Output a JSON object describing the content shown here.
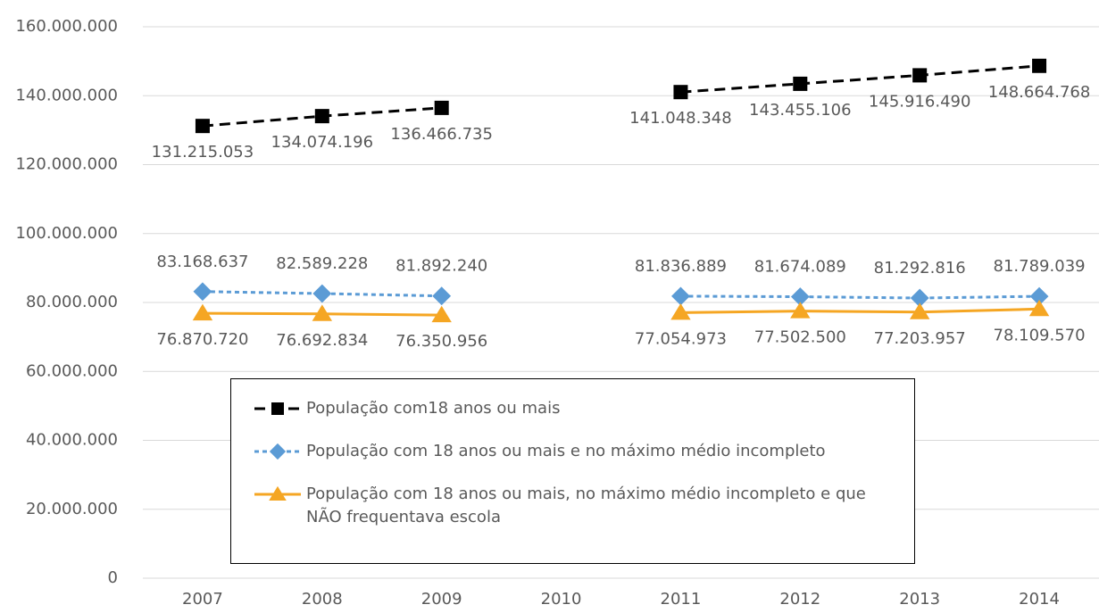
{
  "chart_data": {
    "type": "line",
    "categories": [
      "2007",
      "2008",
      "2009",
      "2010",
      "2011",
      "2012",
      "2013",
      "2014"
    ],
    "series": [
      {
        "name": "População com18 anos ou mais",
        "color": "#000000",
        "line_style": "dashed",
        "marker": "square",
        "values": [
          131215053,
          134074196,
          136466735,
          null,
          141048348,
          143455106,
          145916490,
          148664768
        ],
        "value_labels": [
          "131.215.053",
          "134.074.196",
          "136.466.735",
          null,
          "141.048.348",
          "143.455.106",
          "145.916.490",
          "148.664.768"
        ],
        "label_position": "below"
      },
      {
        "name": "População com 18 anos ou mais e no máximo médio incompleto",
        "color": "#5b9bd5",
        "line_style": "dotted",
        "marker": "diamond",
        "values": [
          83168637,
          82589228,
          81892240,
          null,
          81836889,
          81674089,
          81292816,
          81789039
        ],
        "value_labels": [
          "83.168.637",
          "82.589.228",
          "81.892.240",
          null,
          "81.836.889",
          "81.674.089",
          "81.292.816",
          "81.789.039"
        ],
        "label_position": "above"
      },
      {
        "name": "População com 18 anos ou mais, no máximo médio incompleto e que NÃO frequentava escola",
        "color": "#f5a623",
        "line_style": "solid",
        "marker": "triangle",
        "values": [
          76870720,
          76692834,
          76350956,
          null,
          77054973,
          77502500,
          77203957,
          78109570
        ],
        "value_labels": [
          "76.870.720",
          "76.692.834",
          "76.350.956",
          null,
          "77.054.973",
          "77.502.500",
          "77.203.957",
          "78.109.570"
        ],
        "label_position": "below"
      }
    ],
    "ylim": [
      0,
      160000000
    ],
    "yticks": [
      0,
      {
        "value": 20000000,
        "label": "20.000.000"
      },
      {
        "value": 40000000,
        "label": "40.000.000"
      },
      {
        "value": 60000000,
        "label": "60.000.000"
      },
      {
        "value": 80000000,
        "label": "80.000.000"
      },
      {
        "value": 100000000,
        "label": "100.000.000"
      },
      {
        "value": 120000000,
        "label": "120.000.000"
      },
      {
        "value": 140000000,
        "label": "140.000.000"
      },
      {
        "value": 160000000,
        "label": "160.000.000"
      }
    ],
    "grid": true,
    "legend": "bottom-center"
  }
}
